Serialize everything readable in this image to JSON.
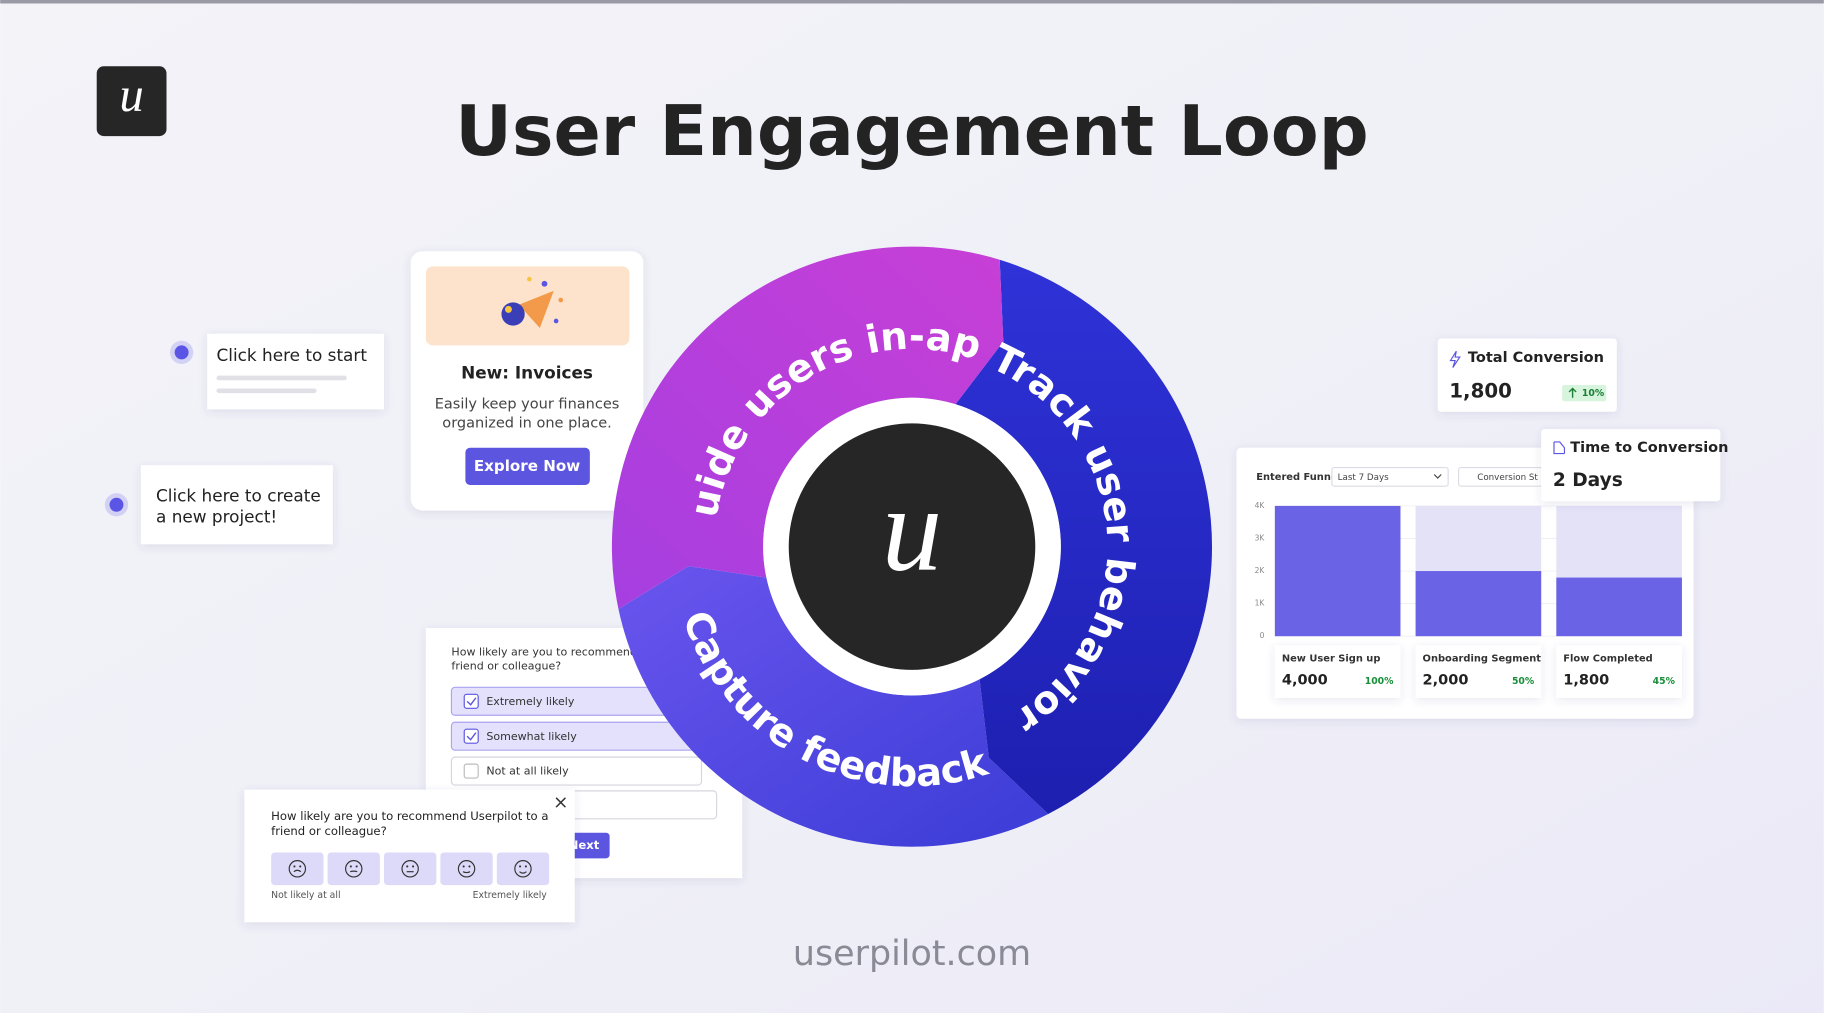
{
  "brand": {
    "logo": "u"
  },
  "header": {
    "title": "User Engagement Loop"
  },
  "loop": {
    "segments": [
      "Guide users in-app",
      "Track user behavior",
      "Capture feedback"
    ]
  },
  "tooltips": [
    [
      "Click here to start"
    ],
    [
      "Click here to create",
      "a new project!"
    ]
  ],
  "announcement": {
    "title": "New: Invoices",
    "body": [
      "Easily keep your finances",
      "organized in one place."
    ],
    "button": "Explore Now"
  },
  "survey": {
    "question": [
      "How likely are you to recommend",
      "friend or colleague?"
    ],
    "options": [
      "Extremely likely",
      "Somewhat likely",
      "Not at all likely"
    ],
    "button": "Next"
  },
  "nps": {
    "question": [
      "How likely are you to recommend Userpilot to a",
      "friend or colleague?"
    ],
    "low": "Not likely at all",
    "high": "Extremely likely"
  },
  "metrics": {
    "total_conversion": {
      "label": "Total Conversion",
      "value": "1,800",
      "change": "10%"
    },
    "time_to_conversion": {
      "label": "Time to Conversion",
      "value": "2 Days"
    }
  },
  "funnel": {
    "type": "bar",
    "title": "Entered Funnel",
    "range": "Last 7 Days",
    "view": "Conversion St",
    "categories": [
      "New User Sign up",
      "Onboarding Segment",
      "Flow Completed"
    ],
    "values": [
      4000,
      2000,
      1800
    ],
    "value_labels": [
      "4,000",
      "2,000",
      "1,800"
    ],
    "shares": [
      "100%",
      "50%",
      "45%"
    ],
    "color": "#6a63e6",
    "ylim": [
      0,
      4000
    ],
    "yticks": [
      0,
      {
        "value": 1000,
        "label": "1K"
      },
      {
        "value": 2000,
        "label": "2K"
      },
      {
        "value": 3000,
        "label": "3K"
      },
      {
        "value": 4000,
        "label": "4K"
      }
    ]
  },
  "footer": "userpilot.com"
}
